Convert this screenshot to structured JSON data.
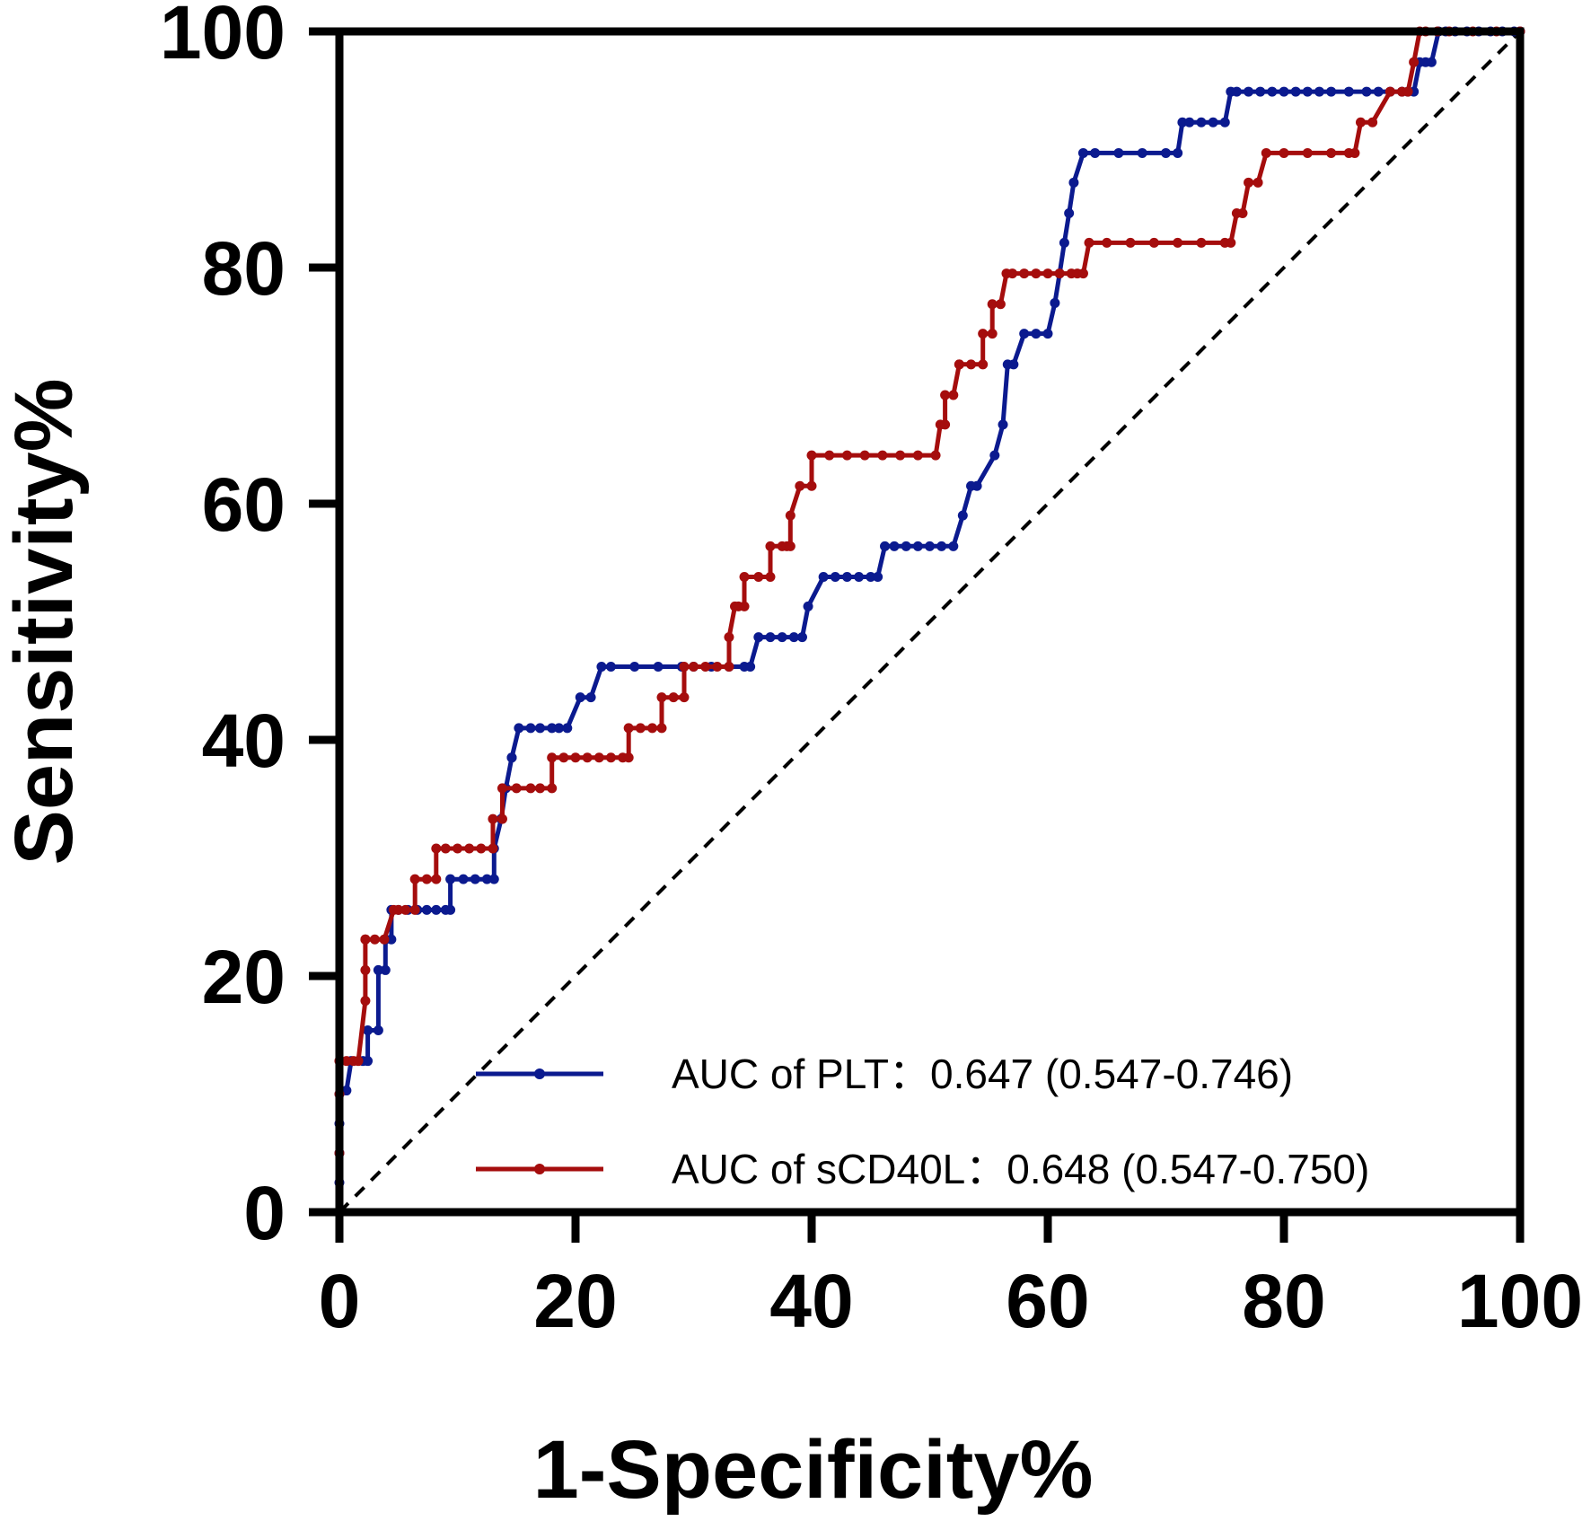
{
  "chart_data": {
    "type": "line",
    "title": "",
    "xlabel": "1-Specificity%",
    "ylabel": "Sensitivity%",
    "xlim": [
      0,
      100
    ],
    "ylim": [
      0,
      100
    ],
    "xticks": [
      0,
      20,
      40,
      60,
      80,
      100
    ],
    "yticks": [
      0,
      20,
      40,
      60,
      80,
      100
    ],
    "xtick_labels": [
      "0",
      "20",
      "40",
      "60",
      "80",
      "100"
    ],
    "ytick_labels": [
      "0",
      "20",
      "40",
      "60",
      "80",
      "100"
    ],
    "grid": false,
    "legend_position": "bottom-right",
    "reference_line": {
      "from": [
        0,
        0
      ],
      "to": [
        100,
        100
      ],
      "style": "dashed",
      "color": "#000000"
    },
    "series": [
      {
        "name": "AUC of PLT：0.647 (0.547-0.746)",
        "color": "#0b1a8f",
        "x": [
          0,
          0,
          0,
          0,
          0,
          0.6,
          1.0,
          2.0,
          2.4,
          2.4,
          3.3,
          3.3,
          3.9,
          3.9,
          4.4,
          4.4,
          5.0,
          5.8,
          6.6,
          7.4,
          8.2,
          9.0,
          9.4,
          9.4,
          10.5,
          11.5,
          12.5,
          13.1,
          13.1,
          13.7,
          14.1,
          14.6,
          14.6,
          15.2,
          16.2,
          17.0,
          18.0,
          18.6,
          19.3,
          20.4,
          21.3,
          22.2,
          23.0,
          25.0,
          27.0,
          29.0,
          30.0,
          31.5,
          33.0,
          34.3,
          34.8,
          35.5,
          36.5,
          37.5,
          38.5,
          39.2,
          39.7,
          41.0,
          42.0,
          43.0,
          44.0,
          45.0,
          45.6,
          46.2,
          47.0,
          48.0,
          49.0,
          50.0,
          51.0,
          52.0,
          52.8,
          53.5,
          54.0,
          55.5,
          56.2,
          56.6,
          57.1,
          58.0,
          59.0,
          60.0,
          60.6,
          61.0,
          61.4,
          61.8,
          62.2,
          63.0,
          64.0,
          66.0,
          68.0,
          70.0,
          71.0,
          71.4,
          72.0,
          73.0,
          74.0,
          75.0,
          75.5,
          76.0,
          77.0,
          78.0,
          79.0,
          80.0,
          81.0,
          82.0,
          83.0,
          84.0,
          85.5,
          87.0,
          88.0,
          89.0,
          90.0,
          90.5,
          91.0,
          91.5,
          92.0,
          92.5,
          93.1,
          93.7,
          94.5,
          95.5,
          96.5,
          97.5,
          98.5,
          99.5,
          100
        ],
        "y": [
          0,
          2.5,
          5,
          7.5,
          10,
          10.3,
          12.8,
          12.8,
          12.8,
          15.4,
          15.4,
          20.5,
          20.5,
          23.1,
          23.1,
          25.6,
          25.6,
          25.6,
          25.6,
          25.6,
          25.6,
          25.6,
          25.6,
          28.2,
          28.2,
          28.2,
          28.2,
          28.2,
          30.8,
          33.3,
          35.9,
          38.5,
          38.5,
          41.0,
          41.0,
          41.0,
          41.0,
          41.0,
          41.0,
          43.6,
          43.6,
          46.2,
          46.2,
          46.2,
          46.2,
          46.2,
          46.2,
          46.2,
          46.2,
          46.2,
          46.2,
          48.7,
          48.7,
          48.7,
          48.7,
          48.7,
          51.3,
          53.8,
          53.8,
          53.8,
          53.8,
          53.8,
          53.8,
          56.4,
          56.4,
          56.4,
          56.4,
          56.4,
          56.4,
          56.4,
          59.0,
          61.5,
          61.5,
          64.1,
          66.7,
          71.8,
          71.8,
          74.4,
          74.4,
          74.4,
          77.0,
          79.5,
          82.1,
          84.6,
          87.2,
          89.7,
          89.7,
          89.7,
          89.7,
          89.7,
          89.7,
          92.3,
          92.3,
          92.3,
          92.3,
          92.3,
          94.9,
          94.9,
          94.9,
          94.9,
          94.9,
          94.9,
          94.9,
          94.9,
          94.9,
          94.9,
          94.9,
          94.9,
          94.9,
          94.9,
          94.9,
          94.9,
          94.9,
          97.4,
          97.4,
          97.4,
          100,
          100,
          100,
          100,
          100,
          100,
          100,
          100,
          100
        ]
      },
      {
        "name": "AUC of sCD40L：0.648 (0.547-0.750)",
        "color": "#a50d0d",
        "x": [
          0,
          0,
          0,
          0,
          0,
          0.6,
          1.2,
          1.6,
          2.2,
          2.2,
          2.2,
          2.2,
          3.0,
          3.8,
          4.6,
          5.0,
          5.6,
          6.4,
          6.4,
          7.4,
          8.2,
          8.2,
          9.0,
          10.0,
          11.0,
          12.0,
          13.0,
          13.0,
          13.8,
          13.8,
          15.0,
          16.2,
          17.0,
          18.0,
          18.0,
          19.0,
          20.0,
          21.0,
          22.0,
          23.0,
          24.0,
          24.5,
          24.5,
          25.5,
          26.5,
          27.3,
          27.3,
          28.3,
          29.2,
          29.2,
          30.0,
          31.0,
          32.0,
          33.0,
          33.0,
          33.5,
          33.8,
          34.3,
          34.3,
          35.5,
          36.5,
          36.5,
          37.5,
          37.9,
          38.2,
          38.2,
          39.0,
          40.0,
          40.0,
          41.5,
          43.0,
          44.5,
          46.0,
          47.5,
          49.0,
          50.5,
          50.9,
          51.3,
          51.3,
          52.0,
          52.5,
          52.5,
          53.5,
          54.5,
          54.5,
          55.3,
          55.3,
          56.0,
          56.5,
          57.0,
          58.0,
          59.0,
          60.0,
          61.0,
          62.0,
          62.5,
          63.0,
          63.5,
          65.0,
          67.0,
          69.0,
          71.0,
          73.0,
          75.0,
          75.5,
          76.0,
          76.5,
          77.0,
          77.8,
          78.5,
          80.0,
          82.0,
          84.0,
          85.5,
          86.0,
          86.5,
          87.5,
          89.0,
          90.0,
          90.5,
          91.0,
          91.5,
          92.0,
          93.0,
          94.0,
          96.0,
          98.0,
          100
        ],
        "y": [
          0,
          5,
          10,
          12.8,
          12.8,
          12.8,
          12.8,
          12.8,
          17.9,
          20.5,
          23.1,
          23.1,
          23.1,
          23.1,
          25.6,
          25.6,
          25.6,
          25.6,
          28.2,
          28.2,
          28.2,
          30.8,
          30.8,
          30.8,
          30.8,
          30.8,
          30.8,
          33.3,
          33.3,
          35.9,
          35.9,
          35.9,
          35.9,
          35.9,
          38.5,
          38.5,
          38.5,
          38.5,
          38.5,
          38.5,
          38.5,
          38.5,
          41.0,
          41.0,
          41.0,
          41.0,
          43.6,
          43.6,
          43.6,
          46.2,
          46.2,
          46.2,
          46.2,
          46.2,
          48.7,
          51.3,
          51.3,
          51.3,
          53.8,
          53.8,
          53.8,
          56.4,
          56.4,
          56.4,
          56.4,
          59.0,
          61.5,
          61.5,
          64.1,
          64.1,
          64.1,
          64.1,
          64.1,
          64.1,
          64.1,
          64.1,
          66.7,
          66.7,
          69.2,
          69.2,
          71.8,
          71.8,
          71.8,
          71.8,
          74.4,
          74.4,
          76.9,
          76.9,
          79.5,
          79.5,
          79.5,
          79.5,
          79.5,
          79.5,
          79.5,
          79.5,
          79.5,
          82.1,
          82.1,
          82.1,
          82.1,
          82.1,
          82.1,
          82.1,
          82.1,
          84.6,
          84.6,
          87.2,
          87.2,
          89.7,
          89.7,
          89.7,
          89.7,
          89.7,
          89.7,
          92.3,
          92.3,
          94.9,
          94.9,
          94.9,
          97.4,
          100,
          100,
          100,
          100,
          100,
          100,
          100
        ]
      }
    ]
  }
}
